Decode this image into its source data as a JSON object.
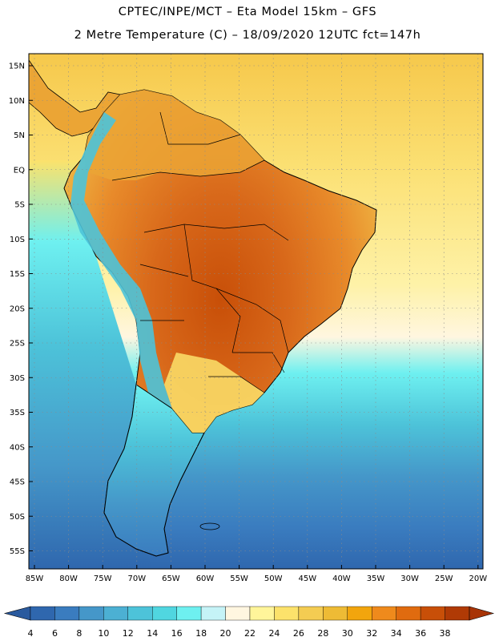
{
  "title_line1": "CPTEC/INPE/MCT –  Eta Model 15km – GFS",
  "title_line2": "2 Metre Temperature (C) – 18/09/2020 12UTC fct=147h",
  "lat_labels": [
    "15N",
    "10N",
    "5N",
    "EQ",
    "5S",
    "10S",
    "15S",
    "20S",
    "25S",
    "30S",
    "35S",
    "40S",
    "45S",
    "50S",
    "55S"
  ],
  "lon_labels": [
    "85W",
    "80W",
    "75W",
    "70W",
    "65W",
    "60W",
    "55W",
    "50W",
    "45W",
    "40W",
    "35W",
    "30W",
    "25W",
    "20W"
  ],
  "legend": {
    "labels": [
      "4",
      "6",
      "8",
      "10",
      "12",
      "14",
      "16",
      "18",
      "20",
      "22",
      "24",
      "26",
      "28",
      "30",
      "32",
      "34",
      "36",
      "38"
    ],
    "colors": [
      "#2f67ae",
      "#3a7cbf",
      "#4597c9",
      "#4cb0d3",
      "#4dc3d9",
      "#50d6e0",
      "#6ef0f0",
      "#c5f3f7",
      "#fff6e0",
      "#fff59a",
      "#fce26b",
      "#f4cc52",
      "#eebb35",
      "#f2a50d",
      "#ef8a1c",
      "#e06b0f",
      "#c84f08",
      "#b03a05"
    ]
  },
  "colors": {
    "ocean_north": "#fbe073",
    "ocean_mid": "#fff6e0",
    "ocean_south": "#2f67ae",
    "land_north": "#eba535",
    "land_hot": "#d06a15",
    "andes": "#4dc3d9",
    "border": "#000000"
  }
}
